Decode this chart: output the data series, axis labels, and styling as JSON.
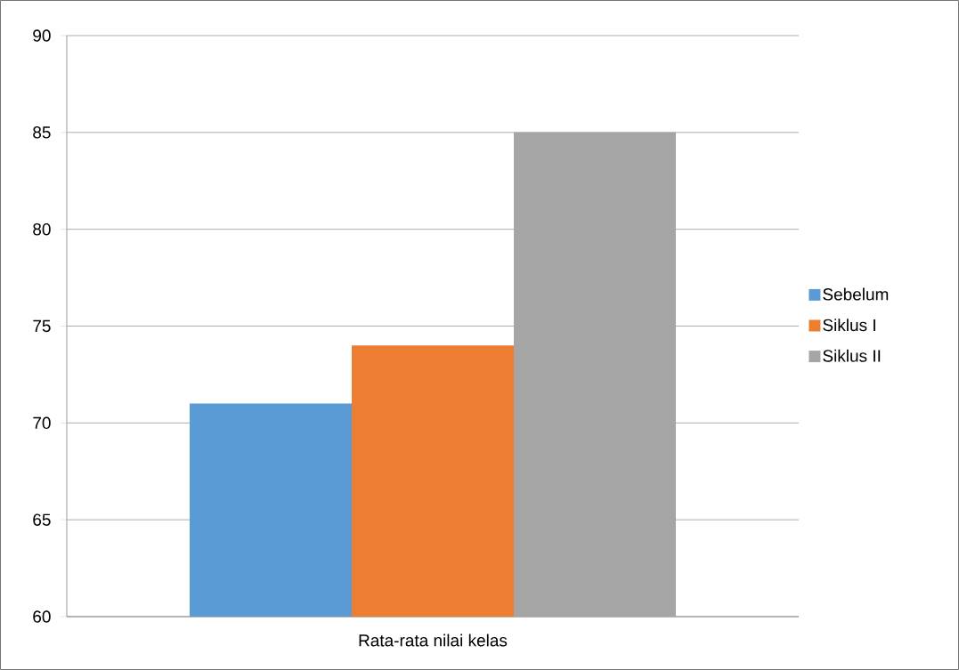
{
  "chart_data": {
    "type": "bar",
    "categories": [
      "Rata-rata nilai kelas"
    ],
    "series": [
      {
        "name": "Sebelum",
        "color": "#5b9bd5",
        "values": [
          71
        ]
      },
      {
        "name": "Siklus I",
        "color": "#ed7d31",
        "values": [
          74
        ]
      },
      {
        "name": "Siklus II",
        "color": "#a5a5a5",
        "values": [
          85
        ]
      }
    ],
    "ylim": [
      60,
      90
    ],
    "yticks": [
      60,
      65,
      70,
      75,
      80,
      85,
      90
    ],
    "grid": "y",
    "legend": "right"
  }
}
